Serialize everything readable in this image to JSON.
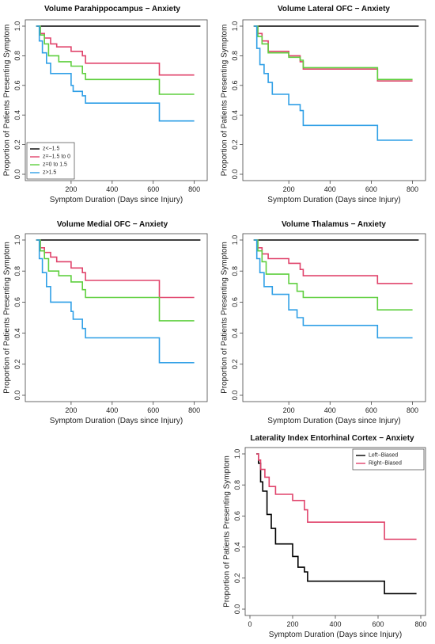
{
  "chart_data": [
    {
      "type": "line",
      "title": "Volume   Parahippocampus  −  Anxiety",
      "xlabel": "Symptom Duration (Days since Injury)",
      "ylabel": "Proportion of Patients Presenting Symptom",
      "xlim": [
        0,
        840
      ],
      "ylim": [
        0,
        1
      ],
      "xticks": [
        "200",
        "400",
        "600",
        "800"
      ],
      "yticks": [
        "0.0",
        "0.2",
        "0.4",
        "0.6",
        "0.8",
        "1.0"
      ],
      "legend": {
        "position": "bottom-left",
        "entries": [
          "z<−1.5",
          "z=−1.5 to 0",
          "z=0 to 1.5",
          "z>1.5"
        ]
      },
      "series": [
        {
          "name": "z<−1.5",
          "color": "#000000",
          "steps": [
            [
              30,
              1.0
            ],
            [
              830,
              1.0
            ]
          ]
        },
        {
          "name": "z=−1.5 to 0",
          "color": "#e0436b",
          "steps": [
            [
              30,
              1.0
            ],
            [
              50,
              0.95
            ],
            [
              70,
              0.92
            ],
            [
              100,
              0.88
            ],
            [
              130,
              0.86
            ],
            [
              200,
              0.83
            ],
            [
              255,
              0.8
            ],
            [
              270,
              0.75
            ],
            [
              590,
              0.75
            ],
            [
              630,
              0.67
            ],
            [
              800,
              0.67
            ]
          ]
        },
        {
          "name": "z=0 to 1.5",
          "color": "#5fcf3f",
          "steps": [
            [
              30,
              1.0
            ],
            [
              50,
              0.94
            ],
            [
              70,
              0.88
            ],
            [
              90,
              0.8
            ],
            [
              140,
              0.76
            ],
            [
              200,
              0.73
            ],
            [
              255,
              0.68
            ],
            [
              270,
              0.64
            ],
            [
              590,
              0.64
            ],
            [
              630,
              0.54
            ],
            [
              800,
              0.54
            ]
          ]
        },
        {
          "name": "z>1.5",
          "color": "#2f9fe6",
          "steps": [
            [
              30,
              1.0
            ],
            [
              45,
              0.9
            ],
            [
              60,
              0.82
            ],
            [
              80,
              0.75
            ],
            [
              100,
              0.68
            ],
            [
              200,
              0.6
            ],
            [
              210,
              0.56
            ],
            [
              255,
              0.53
            ],
            [
              270,
              0.48
            ],
            [
              590,
              0.48
            ],
            [
              630,
              0.36
            ],
            [
              800,
              0.36
            ]
          ]
        }
      ]
    },
    {
      "type": "line",
      "title": "Volume   Lateral OFC  −  Anxiety",
      "xlabel": "Symptom Duration (Days since Injury)",
      "ylabel": "Proportion of Patients Presenting Symptom",
      "xlim": [
        0,
        840
      ],
      "ylim": [
        0,
        1
      ],
      "xticks": [
        "200",
        "400",
        "600",
        "800"
      ],
      "yticks": [
        "0.0",
        "0.2",
        "0.4",
        "0.6",
        "0.8",
        "1.0"
      ],
      "series": [
        {
          "name": "",
          "color": "#000000",
          "steps": [
            [
              30,
              1.0
            ],
            [
              830,
              1.0
            ]
          ]
        },
        {
          "name": "",
          "color": "#e0436b",
          "steps": [
            [
              30,
              1.0
            ],
            [
              50,
              0.95
            ],
            [
              70,
              0.9
            ],
            [
              100,
              0.83
            ],
            [
              200,
              0.8
            ],
            [
              255,
              0.76
            ],
            [
              270,
              0.71
            ],
            [
              590,
              0.71
            ],
            [
              630,
              0.63
            ],
            [
              800,
              0.63
            ]
          ]
        },
        {
          "name": "",
          "color": "#5fcf3f",
          "steps": [
            [
              30,
              1.0
            ],
            [
              50,
              0.93
            ],
            [
              70,
              0.88
            ],
            [
              100,
              0.82
            ],
            [
              200,
              0.79
            ],
            [
              255,
              0.77
            ],
            [
              270,
              0.72
            ],
            [
              590,
              0.72
            ],
            [
              630,
              0.64
            ],
            [
              800,
              0.64
            ]
          ]
        },
        {
          "name": "",
          "color": "#2f9fe6",
          "steps": [
            [
              30,
              1.0
            ],
            [
              45,
              0.85
            ],
            [
              60,
              0.74
            ],
            [
              80,
              0.68
            ],
            [
              100,
              0.62
            ],
            [
              120,
              0.54
            ],
            [
              200,
              0.47
            ],
            [
              255,
              0.43
            ],
            [
              270,
              0.33
            ],
            [
              590,
              0.33
            ],
            [
              630,
              0.23
            ],
            [
              800,
              0.23
            ]
          ]
        }
      ]
    },
    {
      "type": "line",
      "title": "Volume   Medial OFC  −  Anxiety",
      "xlabel": "Symptom Duration (Days since Injury)",
      "ylabel": "Proportion of Patients Presenting Symptom",
      "xlim": [
        0,
        840
      ],
      "ylim": [
        0,
        1
      ],
      "xticks": [
        "200",
        "400",
        "600",
        "800"
      ],
      "yticks": [
        "0.0",
        "0.2",
        "0.4",
        "0.6",
        "0.8",
        "1.0"
      ],
      "series": [
        {
          "name": "",
          "color": "#000000",
          "steps": [
            [
              30,
              1.0
            ],
            [
              830,
              1.0
            ]
          ]
        },
        {
          "name": "",
          "color": "#e0436b",
          "steps": [
            [
              30,
              1.0
            ],
            [
              50,
              0.95
            ],
            [
              70,
              0.92
            ],
            [
              100,
              0.89
            ],
            [
              130,
              0.86
            ],
            [
              200,
              0.82
            ],
            [
              255,
              0.79
            ],
            [
              270,
              0.74
            ],
            [
              590,
              0.74
            ],
            [
              630,
              0.63
            ],
            [
              800,
              0.63
            ]
          ]
        },
        {
          "name": "",
          "color": "#5fcf3f",
          "steps": [
            [
              30,
              1.0
            ],
            [
              50,
              0.93
            ],
            [
              70,
              0.88
            ],
            [
              90,
              0.8
            ],
            [
              140,
              0.77
            ],
            [
              200,
              0.73
            ],
            [
              255,
              0.68
            ],
            [
              270,
              0.63
            ],
            [
              590,
              0.63
            ],
            [
              630,
              0.48
            ],
            [
              800,
              0.48
            ]
          ]
        },
        {
          "name": "",
          "color": "#2f9fe6",
          "steps": [
            [
              30,
              1.0
            ],
            [
              45,
              0.88
            ],
            [
              60,
              0.79
            ],
            [
              80,
              0.7
            ],
            [
              100,
              0.6
            ],
            [
              200,
              0.54
            ],
            [
              210,
              0.49
            ],
            [
              255,
              0.43
            ],
            [
              270,
              0.37
            ],
            [
              590,
              0.37
            ],
            [
              630,
              0.21
            ],
            [
              800,
              0.21
            ]
          ]
        }
      ]
    },
    {
      "type": "line",
      "title": "Volume   Thalamus  −  Anxiety",
      "xlabel": "Symptom Duration (Days since Injury)",
      "ylabel": "Proportion of Patients Presenting Symptom",
      "xlim": [
        0,
        840
      ],
      "ylim": [
        0,
        1
      ],
      "xticks": [
        "200",
        "400",
        "600",
        "800"
      ],
      "yticks": [
        "0.0",
        "0.2",
        "0.4",
        "0.6",
        "0.8",
        "1.0"
      ],
      "series": [
        {
          "name": "",
          "color": "#000000",
          "steps": [
            [
              30,
              1.0
            ],
            [
              830,
              1.0
            ]
          ]
        },
        {
          "name": "",
          "color": "#e0436b",
          "steps": [
            [
              30,
              1.0
            ],
            [
              50,
              0.95
            ],
            [
              70,
              0.91
            ],
            [
              100,
              0.88
            ],
            [
              200,
              0.85
            ],
            [
              255,
              0.81
            ],
            [
              270,
              0.77
            ],
            [
              590,
              0.77
            ],
            [
              630,
              0.72
            ],
            [
              800,
              0.72
            ]
          ]
        },
        {
          "name": "",
          "color": "#5fcf3f",
          "steps": [
            [
              30,
              1.0
            ],
            [
              50,
              0.93
            ],
            [
              70,
              0.86
            ],
            [
              90,
              0.78
            ],
            [
              200,
              0.72
            ],
            [
              240,
              0.67
            ],
            [
              270,
              0.63
            ],
            [
              590,
              0.63
            ],
            [
              630,
              0.55
            ],
            [
              800,
              0.55
            ]
          ]
        },
        {
          "name": "",
          "color": "#2f9fe6",
          "steps": [
            [
              30,
              1.0
            ],
            [
              45,
              0.88
            ],
            [
              60,
              0.79
            ],
            [
              80,
              0.7
            ],
            [
              120,
              0.65
            ],
            [
              200,
              0.55
            ],
            [
              240,
              0.5
            ],
            [
              270,
              0.45
            ],
            [
              590,
              0.45
            ],
            [
              630,
              0.37
            ],
            [
              800,
              0.37
            ]
          ]
        }
      ]
    },
    {
      "type": "line",
      "title": "Laterality Index  Entorhinal Cortex  −  Anxiety",
      "xlabel": "Symptom Duration (Days since Injury)",
      "ylabel": "Proportion of Patients Presenting Symptom",
      "xlim": [
        0,
        800
      ],
      "ylim": [
        0,
        1
      ],
      "xticks": [
        "0",
        "200",
        "400",
        "600",
        "800"
      ],
      "yticks": [
        "0.0",
        "0.2",
        "0.4",
        "0.6",
        "0.8",
        "1.0"
      ],
      "legend": {
        "position": "top-right",
        "entries": [
          "Left−Biased",
          "Right−Biased"
        ]
      },
      "series": [
        {
          "name": "Left−Biased",
          "color": "#000000",
          "steps": [
            [
              30,
              1.0
            ],
            [
              40,
              0.94
            ],
            [
              50,
              0.82
            ],
            [
              60,
              0.76
            ],
            [
              80,
              0.61
            ],
            [
              100,
              0.52
            ],
            [
              120,
              0.42
            ],
            [
              200,
              0.34
            ],
            [
              225,
              0.27
            ],
            [
              255,
              0.24
            ],
            [
              270,
              0.18
            ],
            [
              590,
              0.18
            ],
            [
              630,
              0.1
            ],
            [
              780,
              0.1
            ]
          ]
        },
        {
          "name": "Right−Biased",
          "color": "#e0436b",
          "steps": [
            [
              30,
              1.0
            ],
            [
              40,
              0.96
            ],
            [
              50,
              0.9
            ],
            [
              70,
              0.85
            ],
            [
              90,
              0.79
            ],
            [
              120,
              0.74
            ],
            [
              200,
              0.7
            ],
            [
              255,
              0.64
            ],
            [
              270,
              0.56
            ],
            [
              590,
              0.56
            ],
            [
              630,
              0.45
            ],
            [
              780,
              0.45
            ]
          ]
        }
      ]
    }
  ]
}
